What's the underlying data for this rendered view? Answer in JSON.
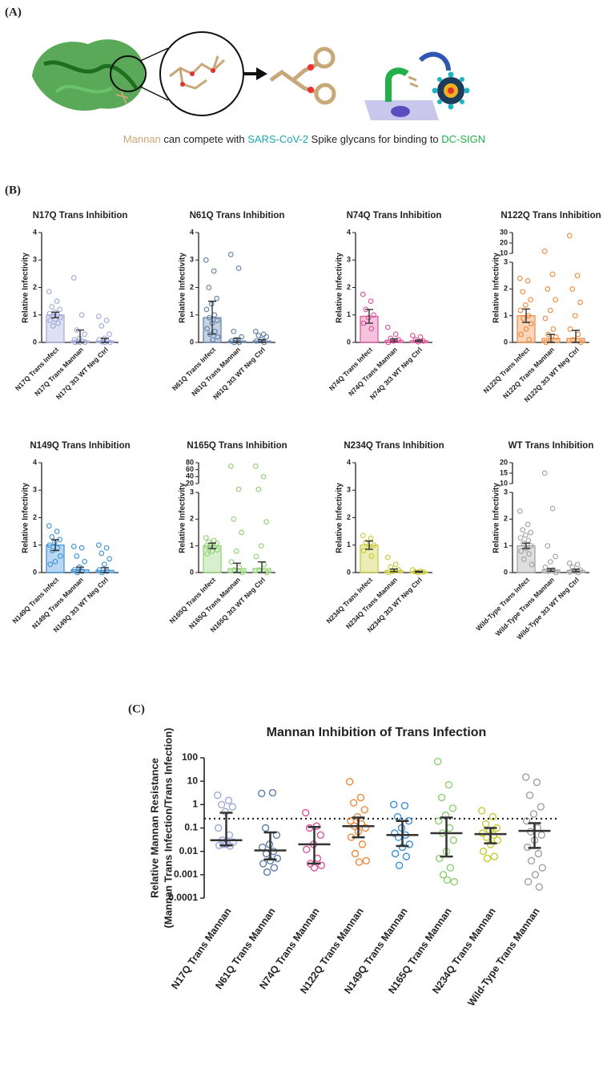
{
  "panel_labels": [
    "(A)",
    "(B)",
    "(C)"
  ],
  "panel_a": {
    "caption": [
      "Mannan",
      " can compete with ",
      "SARS-CoV-2",
      " Spike glycans for binding to ",
      "DC-SIGN"
    ],
    "caption_colors": [
      "#c8a878",
      "#222222",
      "#1aa7b0",
      "#222222",
      "#22b04a"
    ]
  },
  "chart_data": [
    {
      "type": "bar",
      "title": "N17Q Trans Inhibition",
      "ylabel": "Relative Infectivity",
      "color": "#9fa8d8",
      "categories": [
        "N17Q Trans Infect",
        "N17Q Trans Mannan",
        "N17Q 3t3 WT Neg Ctrl"
      ],
      "values": [
        1.0,
        0.05,
        0.05
      ],
      "errors": [
        0.1,
        0.4,
        0.1
      ],
      "points": [
        [
          1.85,
          1.5,
          1.3,
          1.2,
          1.1,
          1.05,
          1.0,
          0.95,
          0.9,
          0.85,
          0.8,
          0.7,
          0.6
        ],
        [
          2.35,
          1.0,
          0.45,
          0.3,
          0.15,
          0.1,
          0.05,
          0.02,
          0.01,
          0,
          0
        ],
        [
          0.95,
          0.8,
          0.6,
          0.3,
          0.15,
          0.1,
          0.05,
          0.02,
          0,
          0
        ]
      ],
      "ylim": [
        0,
        4
      ],
      "yticks": [
        0,
        1,
        2,
        3,
        4
      ]
    },
    {
      "type": "bar",
      "title": "N61Q Trans Inhibition",
      "ylabel": "Relative Infectivity",
      "color": "#5b7da8",
      "categories": [
        "N61Q Trans Infect",
        "N61Q Trans Mannan",
        "N61Q 3t3 WT Neg Ctrl"
      ],
      "values": [
        0.9,
        0.05,
        0.05
      ],
      "errors": [
        0.6,
        0.1,
        0.05
      ],
      "points": [
        [
          3.0,
          2.6,
          2.0,
          1.6,
          1.4,
          1.2,
          1.0,
          0.9,
          0.8,
          0.7,
          0.5,
          0.4,
          0.3,
          0.2,
          0.1
        ],
        [
          3.2,
          2.7,
          0.4,
          0.2,
          0.1,
          0.05,
          0,
          0
        ],
        [
          0.4,
          0.3,
          0.25,
          0.2,
          0.1,
          0.05,
          0
        ]
      ],
      "ylim": [
        0,
        4
      ],
      "yticks": [
        0,
        1,
        2,
        3,
        4
      ]
    },
    {
      "type": "bar",
      "title": "N74Q Trans Inhibition",
      "ylabel": "Relative Infectivity",
      "color": "#e0509a",
      "categories": [
        "N74Q Trans Infect",
        "N74Q Trans Mannan",
        "N74Q 3t3 WT Neg Ctrl"
      ],
      "values": [
        0.95,
        0.08,
        0.06
      ],
      "errors": [
        0.25,
        0.05,
        0.03
      ],
      "points": [
        [
          1.75,
          1.5,
          1.2,
          1.0,
          0.9,
          0.7,
          0.5
        ],
        [
          0.55,
          0.3,
          0.15,
          0.1,
          0.05,
          0
        ],
        [
          0.25,
          0.2,
          0.1,
          0.05,
          0.02
        ]
      ],
      "ylim": [
        0,
        4
      ],
      "yticks": [
        0,
        1,
        2,
        3,
        4
      ]
    },
    {
      "type": "bar",
      "title": "N122Q Trans Inhibition",
      "ylabel": "Relative Infectivity",
      "color": "#f0883a",
      "categories": [
        "N122Q Trans Infect",
        "N122Q Trans Mannan",
        "N122Q 3t3 WT Neg Ctrl"
      ],
      "values": [
        1.0,
        0.15,
        0.15
      ],
      "errors": [
        0.25,
        0.15,
        0.3
      ],
      "points": [
        [
          2.4,
          2.3,
          1.9,
          1.6,
          1.4,
          1.2,
          1.0,
          0.9,
          0.7,
          0.5,
          0.3,
          0.1
        ],
        [
          12,
          2.55,
          2.0,
          1.6,
          1.2,
          0.9,
          0.5,
          0.3,
          0.2,
          0.1,
          0
        ],
        [
          27,
          2.5,
          2.0,
          1.5,
          1.0,
          0.5,
          0.3,
          0.1,
          0
        ]
      ],
      "ylim": [
        0,
        3
      ],
      "yticks": [
        0,
        1,
        2,
        3
      ],
      "ybreak": {
        "ylim": [
          10,
          30
        ],
        "yticks": [
          10,
          20,
          30
        ]
      }
    },
    {
      "type": "bar",
      "title": "N149Q Trans Inhibition",
      "ylabel": "Relative Infectivity",
      "color": "#3a8fd8",
      "categories": [
        "N149Q Trans Infect",
        "N149Q Trans Mannan",
        "N149Q 3t3 WT Neg Ctrl"
      ],
      "values": [
        1.0,
        0.1,
        0.08
      ],
      "errors": [
        0.2,
        0.1,
        0.1
      ],
      "points": [
        [
          1.7,
          1.5,
          1.3,
          1.2,
          1.1,
          1.0,
          0.9,
          0.8,
          0.6,
          0.4,
          0.3
        ],
        [
          0.95,
          0.9,
          0.6,
          0.4,
          0.2,
          0.1,
          0.05,
          0
        ],
        [
          1.0,
          0.9,
          0.7,
          0.5,
          0.3,
          0.1,
          0.05,
          0
        ]
      ],
      "ylim": [
        0,
        4
      ],
      "yticks": [
        0,
        1,
        2,
        3,
        4
      ]
    },
    {
      "type": "bar",
      "title": "N165Q Trans Inhibition",
      "ylabel": "Relative Infectivity",
      "color": "#8dd070",
      "categories": [
        "N165Q Trans Infect",
        "N165Q Trans Mannan",
        "N165Q 3t3 WT Neg Ctrl"
      ],
      "values": [
        1.0,
        0.15,
        0.15
      ],
      "errors": [
        0.1,
        0.2,
        0.25
      ],
      "points": [
        [
          1.3,
          1.2,
          1.15,
          1.1,
          1.05,
          1.0,
          0.95,
          0.9,
          0.85,
          0.8,
          0.7
        ],
        [
          70,
          3.7,
          2.0,
          1.5,
          0.8,
          0.4,
          0.2,
          0.1,
          0
        ],
        [
          70,
          40,
          3.3,
          1.9,
          1.0,
          0.6,
          0.3,
          0.1,
          0
        ]
      ],
      "ylim": [
        0,
        3
      ],
      "yticks": [
        0,
        1,
        2,
        3
      ],
      "ybreak": {
        "ylim": [
          20,
          80
        ],
        "yticks": [
          20,
          40,
          60,
          80
        ]
      }
    },
    {
      "type": "bar",
      "title": "N234Q Trans Inhibition",
      "ylabel": "Relative Infectivity",
      "color": "#c8c832",
      "categories": [
        "N234Q Trans Infect",
        "N234Q Trans Mannan",
        "N234Q 3t3 WT Neg Ctrl"
      ],
      "values": [
        1.0,
        0.08,
        0.03
      ],
      "errors": [
        0.15,
        0.05,
        0.02
      ],
      "points": [
        [
          1.35,
          1.25,
          1.1,
          1.0,
          0.9,
          0.8,
          0.6
        ],
        [
          0.55,
          0.3,
          0.2,
          0.1,
          0.05,
          0
        ],
        [
          0.1,
          0.05,
          0.03,
          0.02,
          0
        ]
      ],
      "ylim": [
        0,
        4
      ],
      "yticks": [
        0,
        1,
        2,
        3,
        4
      ]
    },
    {
      "type": "bar",
      "title": "WT Trans Inhibition",
      "ylabel": "Relative Infectivity",
      "color": "#a0a0a0",
      "categories": [
        "Wild-Type Trans Infect",
        "Wild-Type Trans Mannan",
        "Wild-Type 3t3 WT Neg Ctrl"
      ],
      "values": [
        1.0,
        0.1,
        0.08
      ],
      "errors": [
        0.1,
        0.05,
        0.05
      ],
      "points": [
        [
          2.3,
          1.8,
          1.6,
          1.5,
          1.4,
          1.3,
          1.2,
          1.1,
          1.0,
          0.9,
          0.8,
          0.7,
          0.5,
          0.3
        ],
        [
          15,
          2.4,
          1.0,
          0.6,
          0.4,
          0.2,
          0.1,
          0.05,
          0
        ],
        [
          0.35,
          0.3,
          0.2,
          0.1,
          0.05,
          0.02,
          0
        ]
      ],
      "ylim": [
        0,
        3
      ],
      "yticks": [
        0,
        1,
        2,
        3
      ],
      "ybreak": {
        "ylim": [
          10,
          20
        ],
        "yticks": [
          10,
          15,
          20
        ]
      }
    },
    {
      "type": "dot",
      "title": "Mannan Inhibition of Trans Infection",
      "ylabel": [
        "Relative Mannan Resistance",
        "(Mannan Trans Infection/Trans Infection)"
      ],
      "categories": [
        "N17Q Trans Mannan",
        "N61Q Trans Mannan",
        "N74Q Trans Mannan",
        "N122Q Trans Mannan",
        "N149Q Trans Mannan",
        "N165Q Trans Mannan",
        "N234Q Trans Mannan",
        "Wild-Type Trans Mannan"
      ],
      "colors": [
        "#9fa8d8",
        "#5b7da8",
        "#e0509a",
        "#f0883a",
        "#3a8fd8",
        "#8dd070",
        "#c8c832",
        "#a0a0a0"
      ],
      "values": [
        0.03,
        0.011,
        0.02,
        0.12,
        0.05,
        0.06,
        0.055,
        0.075
      ],
      "iqr": [
        [
          0.018,
          0.45
        ],
        [
          0.0045,
          0.065
        ],
        [
          0.003,
          0.11
        ],
        [
          0.04,
          0.28
        ],
        [
          0.017,
          0.2
        ],
        [
          0.006,
          0.28
        ],
        [
          0.022,
          0.1
        ],
        [
          0.014,
          0.16
        ]
      ],
      "points": [
        [
          2.5,
          1.5,
          1.0,
          0.8,
          0.5,
          0.1,
          0.05,
          0.03,
          0.025,
          0.02,
          0.018,
          0.017,
          0.02
        ],
        [
          3.0,
          3.2,
          0.1,
          0.05,
          0.02,
          0.015,
          0.01,
          0.008,
          0.005,
          0.004,
          0.003,
          0.002,
          0.0013
        ],
        [
          0.45,
          0.12,
          0.1,
          0.05,
          0.02,
          0.012,
          0.005,
          0.003,
          0.0025,
          0.002
        ],
        [
          9.5,
          2.0,
          1.2,
          0.6,
          0.3,
          0.2,
          0.15,
          0.12,
          0.1,
          0.07,
          0.04,
          0.02,
          0.008,
          0.004,
          0.0035
        ],
        [
          1.0,
          0.9,
          0.3,
          0.2,
          0.1,
          0.06,
          0.05,
          0.04,
          0.02,
          0.015,
          0.008,
          0.006,
          0.0025
        ],
        [
          70,
          7,
          2,
          0.7,
          0.35,
          0.2,
          0.1,
          0.06,
          0.03,
          0.01,
          0.005,
          0.002,
          0.001,
          0.0005,
          0.0006
        ],
        [
          0.55,
          0.3,
          0.15,
          0.1,
          0.08,
          0.06,
          0.05,
          0.04,
          0.03,
          0.02,
          0.01,
          0.006,
          0.005
        ],
        [
          15,
          9,
          2.5,
          0.8,
          0.4,
          0.2,
          0.1,
          0.07,
          0.05,
          0.03,
          0.015,
          0.008,
          0.004,
          0.002,
          0.001,
          0.0005,
          0.0003
        ]
      ],
      "reference_line": 0.25,
      "log_scale": true,
      "ylim": [
        0.0001,
        100
      ],
      "yticks": [
        0.0001,
        0.001,
        0.01,
        0.1,
        1,
        10,
        100
      ]
    }
  ]
}
